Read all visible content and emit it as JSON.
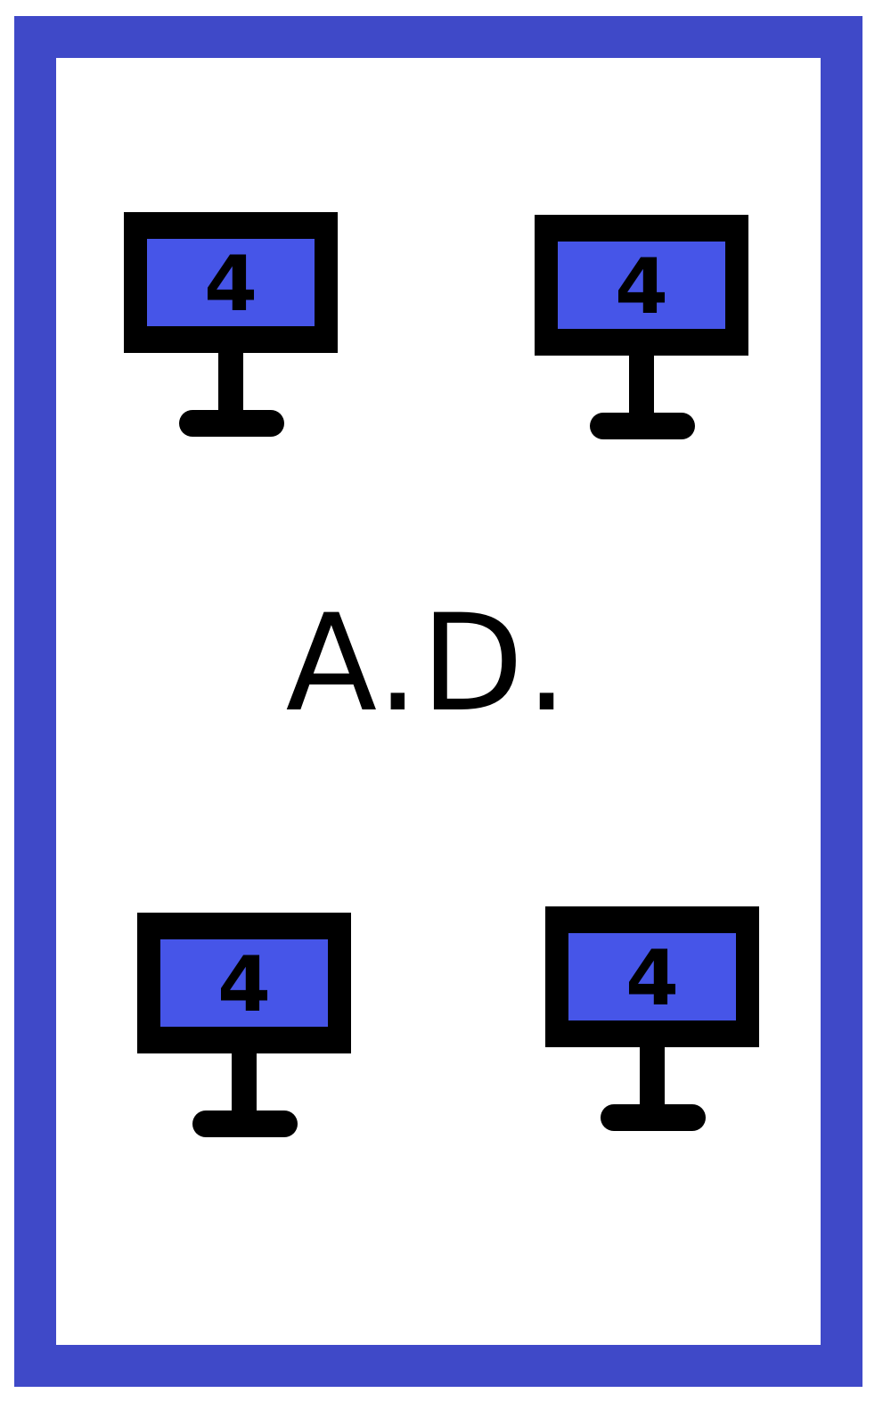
{
  "card": {
    "border_color": "#3F49C8",
    "background_color": "#FFFFFF"
  },
  "label": "A.D.",
  "monitors": [
    {
      "icon": "monitor-icon",
      "screen_label": "4",
      "screen_color": "#4655E8"
    },
    {
      "icon": "monitor-icon",
      "screen_label": "4",
      "screen_color": "#4655E8"
    },
    {
      "icon": "monitor-icon",
      "screen_label": "4",
      "screen_color": "#4655E8"
    },
    {
      "icon": "monitor-icon",
      "screen_label": "4",
      "screen_color": "#4655E8"
    }
  ]
}
